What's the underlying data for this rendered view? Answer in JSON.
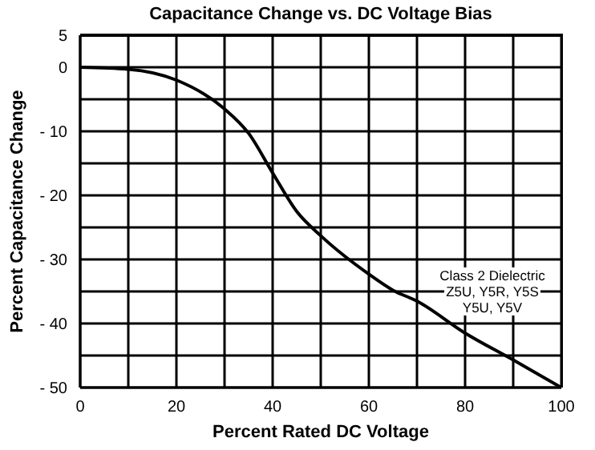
{
  "chart_data": {
    "type": "line",
    "title": "Capacitance Change vs. DC Voltage Bias",
    "xlabel": "Percent Rated DC Voltage",
    "ylabel": "Percent Capacitance Change",
    "x": [
      0,
      10,
      20,
      30,
      35,
      40,
      45,
      50,
      60,
      65,
      70,
      80,
      90,
      100
    ],
    "series": [
      {
        "color": "#000000",
        "values": [
          0,
          -0.3,
          -2,
          -6.5,
          -10.3,
          -16.5,
          -22.5,
          -26.3,
          -32.3,
          -34.8,
          -36.5,
          -41.5,
          -45.7,
          -50
        ]
      }
    ],
    "xlim": [
      0,
      100
    ],
    "ylim": [
      -50,
      5
    ],
    "xticks": [
      0,
      {
        "value": 10,
        "label": null
      },
      20,
      {
        "value": 30,
        "label": null
      },
      40,
      {
        "value": 50,
        "label": null
      },
      60,
      {
        "value": 70,
        "label": null
      },
      80,
      {
        "value": 90,
        "label": null
      },
      100
    ],
    "yticks": [
      5,
      0,
      {
        "value": -5,
        "label": null
      },
      {
        "value": -10,
        "label": "- 10"
      },
      {
        "value": -15,
        "label": null
      },
      {
        "value": -20,
        "label": "- 20"
      },
      {
        "value": -25,
        "label": null
      },
      {
        "value": -30,
        "label": "- 30"
      },
      {
        "value": -35,
        "label": null
      },
      {
        "value": -40,
        "label": "- 40"
      },
      {
        "value": -45,
        "label": null
      },
      {
        "value": -50,
        "label": "- 50"
      }
    ],
    "grid": true,
    "marker": "none",
    "line_style": "solid",
    "annotations": [
      "Class 2 Dielectric\nZ5U, Y5R, Y5S\nY5U, Y5V"
    ]
  }
}
